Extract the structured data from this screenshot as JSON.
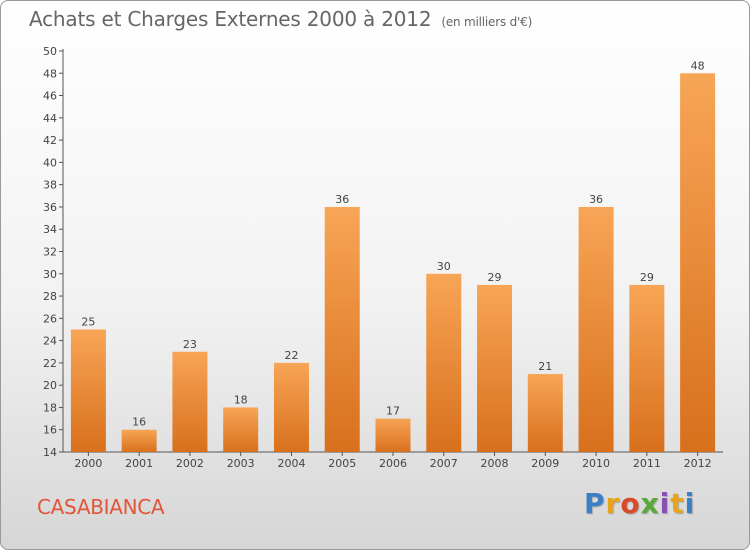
{
  "header": {
    "title": "Achats et Charges Externes 2000 à 2012",
    "unit": "(en milliers d'€)"
  },
  "footer": {
    "city": "CASABIANCA",
    "logo": "Proxiti",
    "logo_colors": [
      "#3b7fc4",
      "#e8a31c",
      "#d94a2a",
      "#5aa83a",
      "#8a4fb5",
      "#e8a31c",
      "#3b7fc4"
    ]
  },
  "chart_data": {
    "type": "bar",
    "categories": [
      "2000",
      "2001",
      "2002",
      "2003",
      "2004",
      "2005",
      "2006",
      "2007",
      "2008",
      "2009",
      "2010",
      "2011",
      "2012"
    ],
    "values": [
      25,
      16,
      23,
      18,
      22,
      36,
      17,
      30,
      29,
      21,
      36,
      29,
      48
    ],
    "title": "Achats et Charges Externes 2000 à 2012",
    "ylim": [
      14,
      50
    ],
    "yticks": [
      14,
      16,
      18,
      20,
      22,
      24,
      26,
      28,
      30,
      32,
      34,
      36,
      38,
      40,
      42,
      44,
      46,
      48,
      50
    ],
    "grid": false,
    "bar_color_top": "#f7a556",
    "bar_color_bottom": "#d8701c"
  }
}
